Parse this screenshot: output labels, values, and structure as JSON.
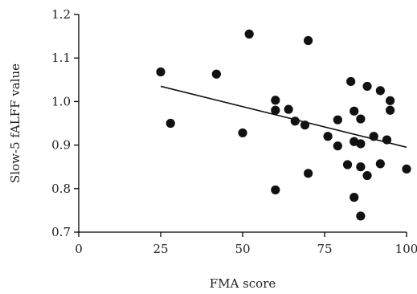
{
  "chart_data": {
    "type": "scatter",
    "title": "",
    "xlabel": "FMA score",
    "ylabel": "Slow-5 fALFF value",
    "xlim": [
      0,
      100
    ],
    "ylim": [
      0.7,
      1.2
    ],
    "xticks": [
      "0",
      "25",
      "50",
      "75",
      "100"
    ],
    "yticks": [
      "0.7",
      "0.8",
      "0.9",
      "1.0",
      "1.1",
      "1.2"
    ],
    "grid": false,
    "legend": "none",
    "points": [
      {
        "x": 25,
        "y": 1.068
      },
      {
        "x": 28,
        "y": 0.95
      },
      {
        "x": 42,
        "y": 1.063
      },
      {
        "x": 50,
        "y": 0.928
      },
      {
        "x": 52,
        "y": 1.155
      },
      {
        "x": 60,
        "y": 1.003
      },
      {
        "x": 60,
        "y": 0.98
      },
      {
        "x": 60,
        "y": 0.797
      },
      {
        "x": 64,
        "y": 0.982
      },
      {
        "x": 66,
        "y": 0.955
      },
      {
        "x": 69,
        "y": 0.946
      },
      {
        "x": 70,
        "y": 1.14
      },
      {
        "x": 70,
        "y": 0.835
      },
      {
        "x": 76,
        "y": 0.92
      },
      {
        "x": 79,
        "y": 0.958
      },
      {
        "x": 79,
        "y": 0.898
      },
      {
        "x": 82,
        "y": 0.855
      },
      {
        "x": 83,
        "y": 1.046
      },
      {
        "x": 84,
        "y": 0.978
      },
      {
        "x": 84,
        "y": 0.908
      },
      {
        "x": 84,
        "y": 0.78
      },
      {
        "x": 86,
        "y": 0.96
      },
      {
        "x": 86,
        "y": 0.903
      },
      {
        "x": 86,
        "y": 0.85
      },
      {
        "x": 86,
        "y": 0.737
      },
      {
        "x": 88,
        "y": 1.035
      },
      {
        "x": 88,
        "y": 0.83
      },
      {
        "x": 90,
        "y": 0.92
      },
      {
        "x": 92,
        "y": 1.025
      },
      {
        "x": 92,
        "y": 0.857
      },
      {
        "x": 94,
        "y": 0.912
      },
      {
        "x": 95,
        "y": 1.002
      },
      {
        "x": 95,
        "y": 0.98
      },
      {
        "x": 100,
        "y": 0.845
      }
    ],
    "trendline": {
      "x": [
        25,
        100
      ],
      "y": [
        1.035,
        0.895
      ]
    },
    "colors": {
      "points": "#111111",
      "trendline": "#111111",
      "axes": "#000000"
    }
  }
}
